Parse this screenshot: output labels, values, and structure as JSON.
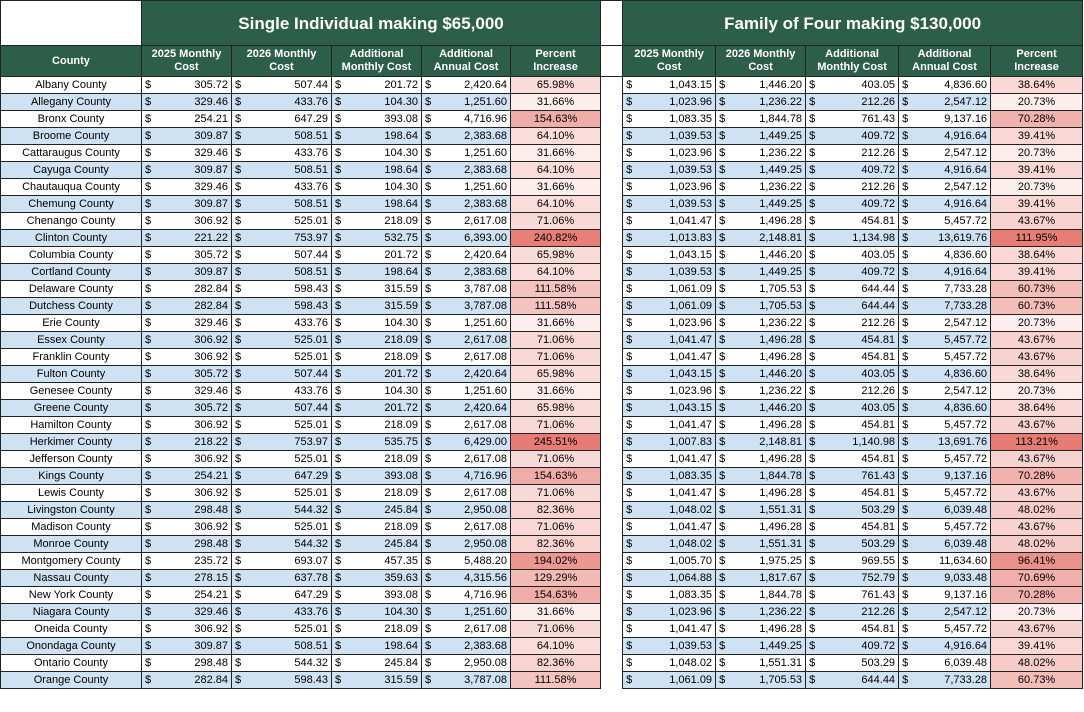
{
  "sections": {
    "single": "Single Individual making $65,000",
    "family": "Family of Four making $130,000"
  },
  "headers": {
    "county": "County",
    "c2025": "2025 Monthly Cost",
    "c2026": "2026 Monthly Cost",
    "add_monthly": "Additional Monthly Cost",
    "add_annual": "Additional Annual Cost",
    "percent": "Percent Increase"
  },
  "currency_symbol": "$",
  "colors": {
    "header_bg": "#2d5e4a",
    "alt_row": "#cfe2f3",
    "pct_low": "#fdeeed",
    "pct_high": "#e67c73"
  },
  "rows": [
    [
      "Albany County",
      "305.72",
      "507.44",
      "201.72",
      "2,420.64",
      "65.98%",
      "1,043.15",
      "1,446.20",
      "403.05",
      "4,836.60",
      "38.64%"
    ],
    [
      "Allegany County",
      "329.46",
      "433.76",
      "104.30",
      "1,251.60",
      "31.66%",
      "1,023.96",
      "1,236.22",
      "212.26",
      "2,547.12",
      "20.73%"
    ],
    [
      "Bronx County",
      "254.21",
      "647.29",
      "393.08",
      "4,716.96",
      "154.63%",
      "1,083.35",
      "1,844.78",
      "761.43",
      "9,137.16",
      "70.28%"
    ],
    [
      "Broome County",
      "309.87",
      "508.51",
      "198.64",
      "2,383.68",
      "64.10%",
      "1,039.53",
      "1,449.25",
      "409.72",
      "4,916.64",
      "39.41%"
    ],
    [
      "Cattaraugus County",
      "329.46",
      "433.76",
      "104.30",
      "1,251.60",
      "31.66%",
      "1,023.96",
      "1,236.22",
      "212.26",
      "2,547.12",
      "20.73%"
    ],
    [
      "Cayuga County",
      "309.87",
      "508.51",
      "198.64",
      "2,383.68",
      "64.10%",
      "1,039.53",
      "1,449.25",
      "409.72",
      "4,916.64",
      "39.41%"
    ],
    [
      "Chautauqua County",
      "329.46",
      "433.76",
      "104.30",
      "1,251.60",
      "31.66%",
      "1,023.96",
      "1,236.22",
      "212.26",
      "2,547.12",
      "20.73%"
    ],
    [
      "Chemung County",
      "309.87",
      "508.51",
      "198.64",
      "2,383.68",
      "64.10%",
      "1,039.53",
      "1,449.25",
      "409.72",
      "4,916.64",
      "39.41%"
    ],
    [
      "Chenango County",
      "306.92",
      "525.01",
      "218.09",
      "2,617.08",
      "71.06%",
      "1,041.47",
      "1,496.28",
      "454.81",
      "5,457.72",
      "43.67%"
    ],
    [
      "Clinton County",
      "221.22",
      "753.97",
      "532.75",
      "6,393.00",
      "240.82%",
      "1,013.83",
      "2,148.81",
      "1,134.98",
      "13,619.76",
      "111.95%"
    ],
    [
      "Columbia County",
      "305.72",
      "507.44",
      "201.72",
      "2,420.64",
      "65.98%",
      "1,043.15",
      "1,446.20",
      "403.05",
      "4,836.60",
      "38.64%"
    ],
    [
      "Cortland County",
      "309.87",
      "508.51",
      "198.64",
      "2,383.68",
      "64.10%",
      "1,039.53",
      "1,449.25",
      "409.72",
      "4,916.64",
      "39.41%"
    ],
    [
      "Delaware County",
      "282.84",
      "598.43",
      "315.59",
      "3,787.08",
      "111.58%",
      "1,061.09",
      "1,705.53",
      "644.44",
      "7,733.28",
      "60.73%"
    ],
    [
      "Dutchess County",
      "282.84",
      "598.43",
      "315.59",
      "3,787.08",
      "111.58%",
      "1,061.09",
      "1,705.53",
      "644.44",
      "7,733.28",
      "60.73%"
    ],
    [
      "Erie County",
      "329.46",
      "433.76",
      "104.30",
      "1,251.60",
      "31.66%",
      "1,023.96",
      "1,236.22",
      "212.26",
      "2,547.12",
      "20.73%"
    ],
    [
      "Essex County",
      "306.92",
      "525.01",
      "218.09",
      "2,617.08",
      "71.06%",
      "1,041.47",
      "1,496.28",
      "454.81",
      "5,457.72",
      "43.67%"
    ],
    [
      "Franklin County",
      "306.92",
      "525.01",
      "218.09",
      "2,617.08",
      "71.06%",
      "1,041.47",
      "1,496.28",
      "454.81",
      "5,457.72",
      "43.67%"
    ],
    [
      "Fulton County",
      "305.72",
      "507.44",
      "201.72",
      "2,420.64",
      "65.98%",
      "1,043.15",
      "1,446.20",
      "403.05",
      "4,836.60",
      "38.64%"
    ],
    [
      "Genesee County",
      "329.46",
      "433.76",
      "104.30",
      "1,251.60",
      "31.66%",
      "1,023.96",
      "1,236.22",
      "212.26",
      "2,547.12",
      "20.73%"
    ],
    [
      "Greene County",
      "305.72",
      "507.44",
      "201.72",
      "2,420.64",
      "65.98%",
      "1,043.15",
      "1,446.20",
      "403.05",
      "4,836.60",
      "38.64%"
    ],
    [
      "Hamilton County",
      "306.92",
      "525.01",
      "218.09",
      "2,617.08",
      "71.06%",
      "1,041.47",
      "1,496.28",
      "454.81",
      "5,457.72",
      "43.67%"
    ],
    [
      "Herkimer County",
      "218.22",
      "753.97",
      "535.75",
      "6,429.00",
      "245.51%",
      "1,007.83",
      "2,148.81",
      "1,140.98",
      "13,691.76",
      "113.21%"
    ],
    [
      "Jefferson County",
      "306.92",
      "525.01",
      "218.09",
      "2,617.08",
      "71.06%",
      "1,041.47",
      "1,496.28",
      "454.81",
      "5,457.72",
      "43.67%"
    ],
    [
      "Kings County",
      "254.21",
      "647.29",
      "393.08",
      "4,716.96",
      "154.63%",
      "1,083.35",
      "1,844.78",
      "761.43",
      "9,137.16",
      "70.28%"
    ],
    [
      "Lewis County",
      "306.92",
      "525.01",
      "218.09",
      "2,617.08",
      "71.06%",
      "1,041.47",
      "1,496.28",
      "454.81",
      "5,457.72",
      "43.67%"
    ],
    [
      "Livingston County",
      "298.48",
      "544.32",
      "245.84",
      "2,950.08",
      "82.36%",
      "1,048.02",
      "1,551.31",
      "503.29",
      "6,039.48",
      "48.02%"
    ],
    [
      "Madison County",
      "306.92",
      "525.01",
      "218.09",
      "2,617.08",
      "71.06%",
      "1,041.47",
      "1,496.28",
      "454.81",
      "5,457.72",
      "43.67%"
    ],
    [
      "Monroe County",
      "298.48",
      "544.32",
      "245.84",
      "2,950.08",
      "82.36%",
      "1,048.02",
      "1,551.31",
      "503.29",
      "6,039.48",
      "48.02%"
    ],
    [
      "Montgomery County",
      "235.72",
      "693.07",
      "457.35",
      "5,488.20",
      "194.02%",
      "1,005.70",
      "1,975.25",
      "969.55",
      "11,634.60",
      "96.41%"
    ],
    [
      "Nassau County",
      "278.15",
      "637.78",
      "359.63",
      "4,315.56",
      "129.29%",
      "1,064.88",
      "1,817.67",
      "752.79",
      "9,033.48",
      "70.69%"
    ],
    [
      "New York County",
      "254.21",
      "647.29",
      "393.08",
      "4,716.96",
      "154.63%",
      "1,083.35",
      "1,844.78",
      "761.43",
      "9,137.16",
      "70.28%"
    ],
    [
      "Niagara County",
      "329.46",
      "433.76",
      "104.30",
      "1,251.60",
      "31.66%",
      "1,023.96",
      "1,236.22",
      "212.26",
      "2,547.12",
      "20.73%"
    ],
    [
      "Oneida County",
      "306.92",
      "525.01",
      "218.09",
      "2,617.08",
      "71.06%",
      "1,041.47",
      "1,496.28",
      "454.81",
      "5,457.72",
      "43.67%"
    ],
    [
      "Onondaga County",
      "309.87",
      "508.51",
      "198.64",
      "2,383.68",
      "64.10%",
      "1,039.53",
      "1,449.25",
      "409.72",
      "4,916.64",
      "39.41%"
    ],
    [
      "Ontario County",
      "298.48",
      "544.32",
      "245.84",
      "2,950.08",
      "82.36%",
      "1,048.02",
      "1,551.31",
      "503.29",
      "6,039.48",
      "48.02%"
    ],
    [
      "Orange County",
      "282.84",
      "598.43",
      "315.59",
      "3,787.08",
      "111.58%",
      "1,061.09",
      "1,705.53",
      "644.44",
      "7,733.28",
      "60.73%"
    ]
  ]
}
